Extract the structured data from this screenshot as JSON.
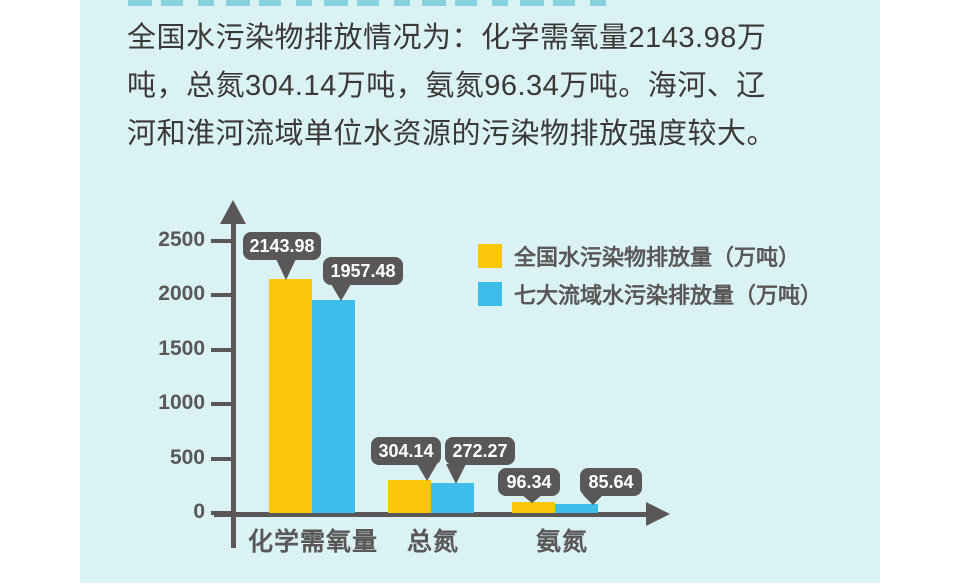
{
  "page": {
    "background": "#ffffff",
    "card_background": "#dbf2f5",
    "cutoff_heading_color": "#3fb9cb"
  },
  "paragraph": {
    "text_color": "#3b3838",
    "lines": [
      "全国水污染物排放情况为：化学需氧量2143.98万",
      "吨，总氮304.14万吨，氨氮96.34万吨。海河、辽",
      "河和淮河流域单位水资源的污染物排放强度较大。"
    ]
  },
  "chart_data": {
    "type": "bar",
    "title": "",
    "categories": [
      "化学需氧量",
      "总氮",
      "氨氮"
    ],
    "series": [
      {
        "name": "全国水污染物排放量（万吨）",
        "color": "#fcc60d",
        "values": [
          2143.98,
          304.14,
          96.34
        ]
      },
      {
        "name": "七大流域水污染排放量（万吨）",
        "color": "#3ebdeb",
        "values": [
          1957.48,
          272.27,
          85.64
        ]
      }
    ],
    "data_labels": [
      "2143.98",
      "1957.48",
      "304.14",
      "272.27",
      "96.34",
      "85.64"
    ],
    "yticks": [
      0,
      500,
      1000,
      1500,
      2000,
      2500
    ],
    "ylim": [
      0,
      2500
    ],
    "xlabel": "",
    "ylabel": "",
    "grid": false,
    "legend_position": "top-right",
    "axis_color": "#595757",
    "callout_bg": "#595757",
    "callout_text_color": "#ffffff"
  }
}
